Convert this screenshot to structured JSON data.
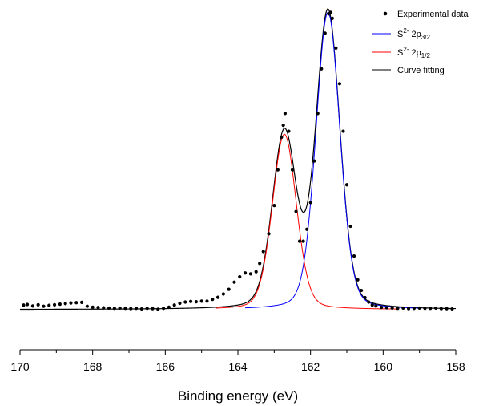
{
  "chart_data": {
    "type": "line",
    "title": "",
    "xlabel": "Binding energy (eV)",
    "ylabel": "",
    "xlim": [
      170,
      158
    ],
    "x_reversed": true,
    "ylim": [
      -0.06,
      1.02
    ],
    "y_axis_visible": false,
    "grid": false,
    "legend_position": "top-right",
    "x_ticks": [
      "170",
      "168",
      "166",
      "164",
      "162",
      "160",
      "158"
    ],
    "legend": [
      {
        "key": "experimental",
        "label": "Experimental data",
        "marker": "dot",
        "color": "#000000"
      },
      {
        "key": "s32",
        "label_main": "S",
        "label_sup": "2-",
        "label_mid": " 2p",
        "label_sub": "3/2",
        "marker": "line",
        "color": "#0000ff"
      },
      {
        "key": "s12",
        "label_main": "S",
        "label_sup": "2-",
        "label_mid": " 2p",
        "label_sub": "1/2",
        "marker": "line",
        "color": "#ff0000"
      },
      {
        "key": "fit",
        "label": "Curve fitting",
        "marker": "line",
        "color": "#000000"
      }
    ],
    "series": [
      {
        "name": "Experimental data",
        "style": "scatter",
        "color": "#000000",
        "x": [
          169.9,
          169.8,
          169.65,
          169.5,
          169.35,
          169.2,
          169.05,
          168.9,
          168.75,
          168.6,
          168.45,
          168.3,
          168.15,
          168.0,
          167.85,
          167.7,
          167.55,
          167.4,
          167.25,
          167.1,
          166.95,
          166.8,
          166.65,
          166.5,
          166.35,
          166.2,
          166.05,
          165.9,
          165.75,
          165.6,
          165.45,
          165.3,
          165.15,
          165.0,
          164.85,
          164.7,
          164.55,
          164.4,
          164.25,
          164.1,
          163.95,
          163.8,
          163.65,
          163.5,
          163.4,
          163.3,
          163.15,
          163.0,
          162.9,
          162.8,
          162.75,
          162.7,
          162.6,
          162.5,
          162.4,
          162.3,
          162.2,
          162.1,
          162.0,
          161.9,
          161.8,
          161.7,
          161.6,
          161.5,
          161.45,
          161.4,
          161.3,
          161.2,
          161.1,
          161.0,
          160.9,
          160.8,
          160.7,
          160.6,
          160.5,
          160.4,
          160.3,
          160.2,
          160.05,
          159.9,
          159.75,
          159.6,
          159.45,
          159.3,
          159.15,
          159.0,
          158.85,
          158.7,
          158.55,
          158.4,
          158.25,
          158.1
        ],
        "y": [
          0.015,
          0.017,
          0.012,
          0.016,
          0.011,
          0.014,
          0.016,
          0.018,
          0.02,
          0.022,
          0.023,
          0.024,
          0.011,
          0.008,
          0.007,
          0.006,
          0.005,
          0.004,
          0.005,
          0.004,
          0.003,
          0.004,
          0.002,
          0.004,
          0.003,
          0.001,
          0.004,
          0.008,
          0.015,
          0.021,
          0.025,
          0.027,
          0.026,
          0.028,
          0.028,
          0.034,
          0.041,
          0.052,
          0.068,
          0.092,
          0.11,
          0.123,
          0.12,
          0.127,
          0.155,
          0.195,
          0.255,
          0.35,
          0.47,
          0.58,
          0.62,
          0.66,
          0.6,
          0.47,
          0.33,
          0.23,
          0.23,
          0.27,
          0.36,
          0.5,
          0.66,
          0.81,
          0.93,
          0.995,
          1.0,
          0.98,
          0.88,
          0.76,
          0.6,
          0.42,
          0.28,
          0.18,
          0.1,
          0.064,
          0.04,
          0.025,
          0.015,
          0.012,
          0.007,
          0.006,
          0.005,
          0.004,
          0.005,
          0.003,
          0.004,
          0.005,
          0.004,
          0.004,
          0.005,
          0.003,
          0.003,
          0.002
        ]
      },
      {
        "name": "S2- 2p3/2",
        "style": "line",
        "color": "#0000ff",
        "peak_center": 161.52,
        "peak_height": 1.0,
        "fwhm": 0.78,
        "x_range": [
          163.8,
          159.0
        ]
      },
      {
        "name": "S2- 2p1/2",
        "style": "line",
        "color": "#ff0000",
        "peak_center": 162.72,
        "peak_height": 0.59,
        "fwhm": 0.78,
        "x_range": [
          164.6,
          159.6
        ]
      },
      {
        "name": "Curve fitting",
        "style": "line",
        "color": "#000000",
        "x_range": [
          170.0,
          158.0
        ]
      }
    ]
  }
}
